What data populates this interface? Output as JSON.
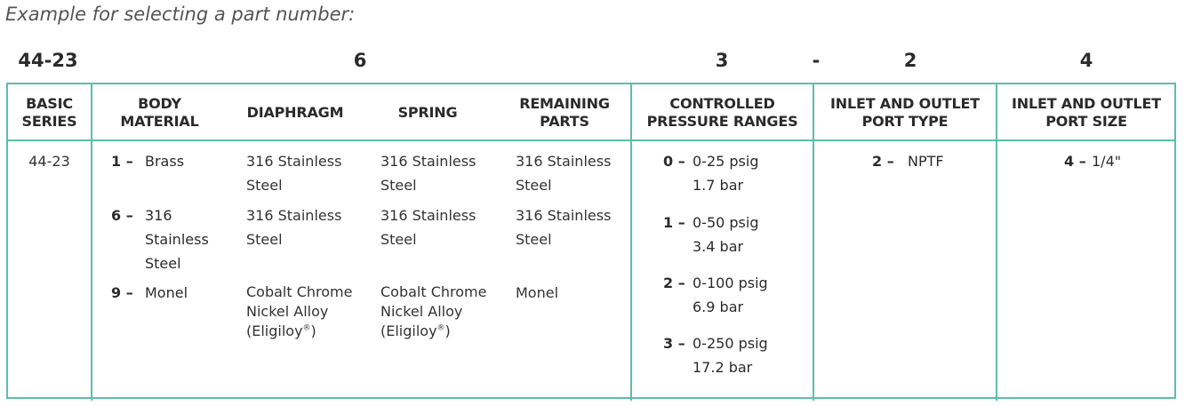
{
  "caption": "Example for selecting a part number:",
  "part_number": {
    "series": "44-23",
    "body_material": "6",
    "pressure_range": "3",
    "dash": "-",
    "port_type": "2",
    "port_size": "4"
  },
  "headers": {
    "basic_series": [
      "BASIC",
      "SERIES"
    ],
    "body_material": [
      "BODY",
      "MATERIAL"
    ],
    "diaphragm": [
      "DIAPHRAGM"
    ],
    "spring": [
      "SPRING"
    ],
    "remaining_parts": [
      "REMAINING",
      "PARTS"
    ],
    "pressure_ranges": [
      "CONTROLLED",
      "PRESSURE RANGES"
    ],
    "port_type": [
      "INLET AND OUTLET",
      "PORT TYPE"
    ],
    "port_size": [
      "INLET AND OUTLET",
      "PORT SIZE"
    ]
  },
  "basic_series_value": "44-23",
  "materials": [
    {
      "code": "1 –",
      "body": [
        "Brass"
      ],
      "diaphragm": [
        "316 Stainless",
        "Steel"
      ],
      "spring": [
        "316 Stainless",
        "Steel"
      ],
      "remaining": [
        "316 Stainless",
        "Steel"
      ]
    },
    {
      "code": "6 –",
      "body": [
        "316",
        "Stainless",
        "Steel"
      ],
      "diaphragm": [
        "316 Stainless",
        "Steel"
      ],
      "spring": [
        "316 Stainless",
        "Steel"
      ],
      "remaining": [
        "316 Stainless",
        "Steel"
      ]
    },
    {
      "code": "9 –",
      "body": [
        "Monel"
      ],
      "diaphragm": [
        "Cobalt Chrome",
        "Nickel Alloy",
        "(Eligiloy",
        "®",
        ")"
      ],
      "spring": [
        "Cobalt Chrome",
        "Nickel Alloy",
        "(Eligiloy",
        "®",
        ")"
      ],
      "remaining": [
        "Monel"
      ]
    }
  ],
  "pressure_ranges": [
    {
      "code": "0 –",
      "psig": "0-25 psig",
      "bar": "1.7 bar"
    },
    {
      "code": "1 –",
      "psig": "0-50 psig",
      "bar": "3.4 bar"
    },
    {
      "code": "2 –",
      "psig": "0-100 psig",
      "bar": "6.9 bar"
    },
    {
      "code": "3 –",
      "psig": "0-250 psig",
      "bar": "17.2 bar"
    }
  ],
  "port_type": {
    "code": "2 –",
    "value": "NPTF"
  },
  "port_size": {
    "code": "4 –",
    "value": "1/4\""
  },
  "colors": {
    "border": "#5bbfa8",
    "text": "#2b2b2b",
    "caption": "#555555"
  }
}
